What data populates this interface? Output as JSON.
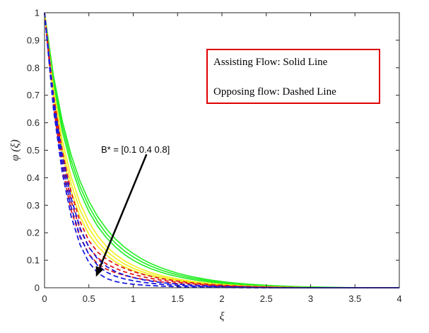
{
  "chart_data": {
    "type": "line",
    "xlabel": "ξ",
    "ylabel": "φ (ξ)",
    "xlim": [
      0,
      4
    ],
    "ylim": [
      0,
      1
    ],
    "xticks": [
      0,
      0.5,
      1,
      1.5,
      2,
      2.5,
      3,
      3.5,
      4
    ],
    "xtick_labels": [
      "0",
      "0.5",
      "1",
      "1.5",
      "2",
      "2.5",
      "3",
      "3.5",
      "4"
    ],
    "yticks": [
      0,
      0.1,
      0.2,
      0.3,
      0.4,
      0.5,
      0.6,
      0.7,
      0.8,
      0.9,
      1
    ],
    "ytick_labels": [
      "0",
      "0.1",
      "0.2",
      "0.3",
      "0.4",
      "0.5",
      "0.6",
      "0.7",
      "0.8",
      "0.9",
      "1"
    ],
    "grid": false,
    "legend_box": {
      "line1": "Assisting Flow:  Solid Line",
      "line2": "Opposing flow: Dashed Line",
      "placement": "top-right",
      "border_color": "#e00000"
    },
    "annotation": {
      "text": "B* = [0.1  0.4  0.8]",
      "arrow_from": [
        1.15,
        0.485
      ],
      "arrow_to": [
        0.58,
        0.04
      ]
    },
    "colors": {
      "green": "#22ee22",
      "yellow": "#f2ee1e",
      "red": "#e01818",
      "blue": "#1a1ae0"
    },
    "x": [
      0,
      0.1,
      0.2,
      0.3,
      0.4,
      0.5,
      0.6,
      0.7,
      0.8,
      0.9,
      1.0,
      1.1,
      1.2,
      1.3,
      1.4,
      1.5,
      1.6,
      1.7,
      1.8,
      1.9,
      2.0,
      2.1,
      2.2,
      2.3,
      2.4,
      2.5,
      2.6,
      2.7,
      2.8,
      2.9,
      3.0,
      3.1,
      3.2,
      3.3,
      3.4,
      3.5,
      3.6,
      3.7,
      3.8,
      3.9,
      4.0
    ],
    "series": [
      {
        "group": "green",
        "style": "solid",
        "values": [
          1.0,
          0.773,
          0.607,
          0.483,
          0.388,
          0.315,
          0.258,
          0.213,
          0.177,
          0.148,
          0.124,
          0.104,
          0.0878,
          0.0742,
          0.0628,
          0.0531,
          0.0449,
          0.038,
          0.032,
          0.027,
          0.0227,
          0.019,
          0.0159,
          0.0132,
          0.011,
          0.00903,
          0.00738,
          0.00598,
          0.00481,
          0.00382,
          0.003,
          0.00231,
          0.00173,
          0.00126,
          0.000862,
          0.000535,
          0.000276,
          8.7e-05,
          0,
          0,
          0
        ]
      },
      {
        "group": "green",
        "style": "solid",
        "values": [
          1.0,
          0.761,
          0.589,
          0.463,
          0.368,
          0.296,
          0.24,
          0.196,
          0.162,
          0.134,
          0.112,
          0.0935,
          0.0784,
          0.0659,
          0.0555,
          0.0467,
          0.0393,
          0.0331,
          0.0277,
          0.0232,
          0.0194,
          0.0162,
          0.0134,
          0.0111,
          0.00912,
          0.00745,
          0.00604,
          0.00486,
          0.00388,
          0.00306,
          0.00237,
          0.0018,
          0.00133,
          0.000938,
          0.000615,
          0.000354,
          0.00015,
          0,
          0,
          0,
          0
        ]
      },
      {
        "group": "green",
        "style": "solid",
        "values": [
          1.0,
          0.748,
          0.57,
          0.443,
          0.348,
          0.277,
          0.223,
          0.181,
          0.148,
          0.121,
          0.1,
          0.0831,
          0.0692,
          0.0578,
          0.0483,
          0.0404,
          0.0338,
          0.0282,
          0.0235,
          0.0195,
          0.0161,
          0.0133,
          0.0109,
          0.0089,
          0.0072,
          0.00578,
          0.00459,
          0.0036,
          0.00277,
          0.00208,
          0.00152,
          0.00105,
          0.000668,
          0.000361,
          0.00012,
          0,
          0,
          0,
          0,
          0,
          0
        ]
      },
      {
        "group": "yellow",
        "style": "solid",
        "values": [
          1.0,
          0.726,
          0.536,
          0.403,
          0.308,
          0.239,
          0.188,
          0.15,
          0.121,
          0.0985,
          0.0808,
          0.0667,
          0.0553,
          0.046,
          0.0384,
          0.032,
          0.0267,
          0.0222,
          0.0184,
          0.0152,
          0.0125,
          0.0102,
          0.00831,
          0.0067,
          0.00535,
          0.00422,
          0.00328,
          0.0025,
          0.00185,
          0.00132,
          0.000888,
          0.000539,
          0.000259,
          3.8e-05,
          0,
          0,
          0,
          0,
          0,
          0,
          0
        ]
      },
      {
        "group": "yellow",
        "style": "solid",
        "values": [
          1.0,
          0.71,
          0.512,
          0.378,
          0.283,
          0.216,
          0.168,
          0.133,
          0.107,
          0.0866,
          0.071,
          0.0586,
          0.0486,
          0.0404,
          0.0337,
          0.0281,
          0.0233,
          0.0193,
          0.0159,
          0.0131,
          0.0107,
          0.00864,
          0.00694,
          0.00552,
          0.00433,
          0.00334,
          0.00252,
          0.00184,
          0.00128,
          0.000826,
          0.000457,
          0.00016,
          0,
          0,
          0,
          0,
          0,
          0,
          0,
          0,
          0
        ]
      },
      {
        "group": "yellow",
        "style": "solid",
        "values": [
          1.0,
          0.693,
          0.488,
          0.352,
          0.258,
          0.194,
          0.15,
          0.118,
          0.094,
          0.0761,
          0.0623,
          0.0514,
          0.0426,
          0.0355,
          0.0296,
          0.0247,
          0.0205,
          0.017,
          0.014,
          0.0115,
          0.00937,
          0.00755,
          0.00602,
          0.00474,
          0.00367,
          0.00277,
          0.00203,
          0.00141,
          0.0009,
          0.000484,
          0.000148,
          0,
          0,
          0,
          0,
          0,
          0,
          0,
          0,
          0,
          0
        ]
      },
      {
        "group": "red",
        "style": "dashed",
        "values": [
          1.0,
          0.704,
          0.497,
          0.347,
          0.241,
          0.171,
          0.129,
          0.104,
          0.0855,
          0.071,
          0.0592,
          0.0495,
          0.0414,
          0.0346,
          0.0289,
          0.0241,
          0.02,
          0.0166,
          0.0137,
          0.0112,
          0.00912,
          0.00734,
          0.00585,
          0.0046,
          0.00355,
          0.00267,
          0.00194,
          0.00134,
          0.000847,
          0.000444,
          0.00012,
          0,
          0,
          0,
          0,
          0,
          0,
          0,
          0,
          0,
          0
        ]
      },
      {
        "group": "red",
        "style": "dashed",
        "values": [
          1.0,
          0.684,
          0.466,
          0.315,
          0.213,
          0.147,
          0.108,
          0.086,
          0.0703,
          0.0582,
          0.0485,
          0.0406,
          0.034,
          0.0284,
          0.0237,
          0.0197,
          0.0164,
          0.0135,
          0.0111,
          0.00906,
          0.00733,
          0.00586,
          0.00462,
          0.00359,
          0.00271,
          0.00198,
          0.00137,
          0.000873,
          0.000464,
          0.000132,
          0,
          0,
          0,
          0,
          0,
          0,
          0,
          0,
          0,
          0,
          0
        ]
      },
      {
        "group": "red",
        "style": "dashed",
        "values": [
          1.0,
          0.663,
          0.435,
          0.282,
          0.184,
          0.122,
          0.0865,
          0.0673,
          0.0546,
          0.0451,
          0.0375,
          0.0313,
          0.0262,
          0.0219,
          0.0182,
          0.0151,
          0.0124,
          0.0101,
          0.00818,
          0.00655,
          0.00517,
          0.00401,
          0.00304,
          0.00223,
          0.00156,
          0.00101,
          0.000557,
          0.000183,
          0,
          0,
          0,
          0,
          0,
          0,
          0,
          0,
          0,
          0,
          0,
          0,
          0
        ]
      },
      {
        "group": "blue",
        "style": "dashed",
        "values": [
          1.0,
          0.693,
          0.48,
          0.326,
          0.218,
          0.148,
          0.104,
          0.077,
          0.059,
          0.0463,
          0.037,
          0.0298,
          0.0243,
          0.0198,
          0.0162,
          0.0132,
          0.0108,
          0.00874,
          0.00703,
          0.00561,
          0.00442,
          0.00343,
          0.0026,
          0.00191,
          0.00134,
          0.00086,
          0.000463,
          0.000134,
          0,
          0,
          0,
          0,
          0,
          0,
          0,
          0,
          0,
          0,
          0,
          0,
          0
        ]
      },
      {
        "group": "blue",
        "style": "dashed",
        "values": [
          1.0,
          0.672,
          0.449,
          0.293,
          0.188,
          0.121,
          0.0806,
          0.0565,
          0.0418,
          0.0322,
          0.0254,
          0.0203,
          0.0164,
          0.0133,
          0.0108,
          0.00873,
          0.00702,
          0.00559,
          0.0044,
          0.00341,
          0.00258,
          0.00189,
          0.00132,
          0.000842,
          0.000447,
          0.000121,
          0,
          0,
          0,
          0,
          0,
          0,
          0,
          0,
          0,
          0,
          0,
          0,
          0,
          0,
          0
        ]
      },
      {
        "group": "blue",
        "style": "dashed",
        "values": [
          1.0,
          0.651,
          0.418,
          0.26,
          0.157,
          0.092,
          0.054,
          0.0334,
          0.0227,
          0.0166,
          0.0127,
          0.00996,
          0.00791,
          0.00631,
          0.00503,
          0.00398,
          0.00312,
          0.00241,
          0.00182,
          0.00133,
          0.000927,
          0.000589,
          0.000308,
          7.3e-05,
          0,
          0,
          0,
          0,
          0,
          0,
          0,
          0,
          0,
          0,
          0,
          0,
          0,
          0,
          0,
          0,
          0
        ]
      }
    ]
  }
}
